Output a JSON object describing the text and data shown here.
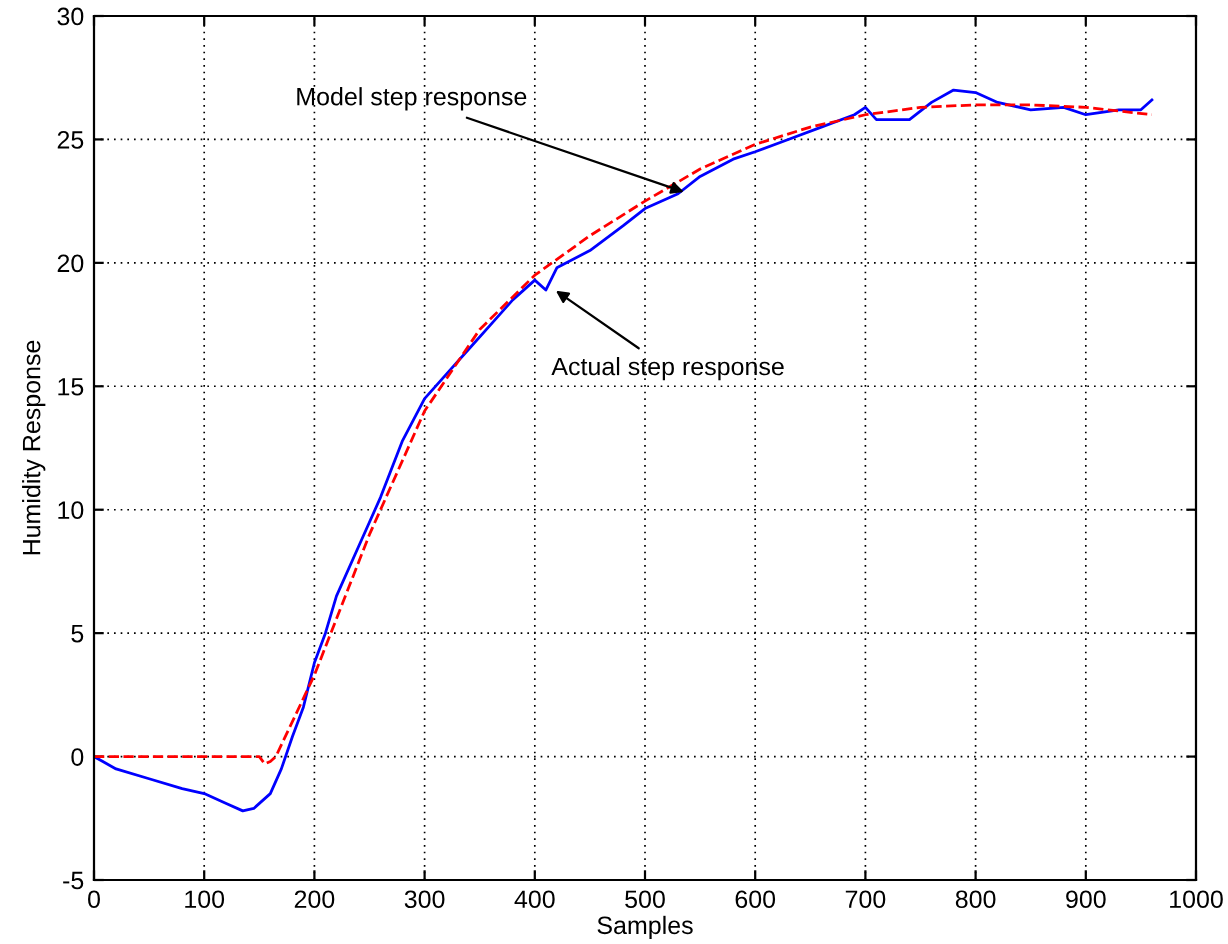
{
  "chart_data": {
    "type": "line",
    "xlabel": "Samples",
    "ylabel": "Humidity Response",
    "xlim": [
      0,
      1000
    ],
    "ylim": [
      -5,
      30
    ],
    "xticks": [
      0,
      100,
      200,
      300,
      400,
      500,
      600,
      700,
      800,
      900,
      1000
    ],
    "yticks": [
      -5,
      0,
      5,
      10,
      15,
      20,
      25,
      30
    ],
    "grid": true,
    "series": [
      {
        "color": "#0000ff",
        "line_style": "solid",
        "x": [
          0,
          20,
          50,
          80,
          100,
          120,
          135,
          145,
          160,
          170,
          180,
          190,
          200,
          210,
          220,
          240,
          260,
          280,
          300,
          320,
          340,
          360,
          380,
          400,
          410,
          420,
          450,
          480,
          500,
          530,
          550,
          580,
          600,
          630,
          660,
          690,
          700,
          710,
          740,
          760,
          780,
          800,
          820,
          850,
          880,
          900,
          930,
          950,
          960
        ],
        "values": [
          0,
          -0.5,
          -0.9,
          -1.3,
          -1.5,
          -1.9,
          -2.2,
          -2.1,
          -1.5,
          -0.5,
          0.8,
          2,
          3.8,
          5,
          6.5,
          8.5,
          10.5,
          12.8,
          14.5,
          15.5,
          16.5,
          17.5,
          18.5,
          19.3,
          18.9,
          19.8,
          20.5,
          21.5,
          22.2,
          22.8,
          23.5,
          24.2,
          24.5,
          25,
          25.5,
          26,
          26.3,
          25.8,
          25.8,
          26.5,
          27,
          26.9,
          26.5,
          26.2,
          26.3,
          26,
          26.2,
          26.2,
          26.6
        ]
      },
      {
        "color": "#ff0000",
        "line_style": "dashed",
        "x": [
          0,
          150,
          155,
          160,
          165,
          200,
          250,
          300,
          350,
          400,
          450,
          500,
          550,
          600,
          650,
          700,
          750,
          800,
          850,
          900,
          960
        ],
        "values": [
          0,
          0,
          -0.3,
          -0.2,
          0,
          3.3,
          9,
          14,
          17.3,
          19.5,
          21.1,
          22.5,
          23.8,
          24.8,
          25.5,
          26,
          26.3,
          26.4,
          26.4,
          26.3,
          26
        ]
      }
    ],
    "annotations": [
      {
        "text": "Model step response",
        "x": 540,
        "y": 22.8
      },
      {
        "text": "Actual step response",
        "x": 415,
        "y": 19
      }
    ]
  }
}
